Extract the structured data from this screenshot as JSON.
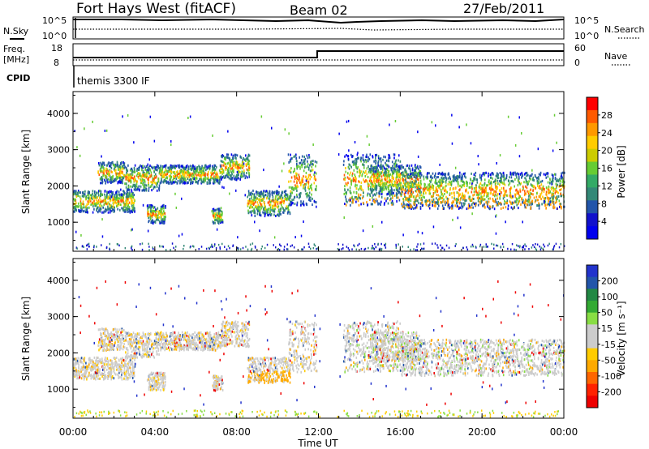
{
  "header": {
    "title": "Fort Hays West (fitACF)",
    "beam": "Beam 02",
    "date": "27/Feb/2011"
  },
  "top_panel": {
    "left_label": "N.Sky",
    "right_label": "N.Search",
    "left_ticks": [
      "10^5",
      "10^0"
    ],
    "right_ticks": [
      "10^5",
      "10^0"
    ]
  },
  "freq_panel": {
    "left_label": "Freq.",
    "left_unit": "[MHz]",
    "right_label": "Nave",
    "left_ticks": [
      "18",
      "8"
    ],
    "right_ticks": [
      "60",
      "0"
    ]
  },
  "cpid": {
    "label": "CPID",
    "value": "themis 3300 IF"
  },
  "chart_data": [
    {
      "type": "heatmap",
      "name": "power",
      "ylabel": "Slant Range [km]",
      "yticks": [
        "4000",
        "3000",
        "2000",
        "1000"
      ],
      "ylim": [
        200,
        4600
      ],
      "colorbar_label": "Power [dB]",
      "colorbar_ticks": [
        "28",
        "24",
        "20",
        "16",
        "12",
        "8",
        "4"
      ],
      "colorbar_colors": [
        "#ff0000",
        "#ff5a00",
        "#ff9900",
        "#ffcc00",
        "#cccc00",
        "#66cc33",
        "#33aa66",
        "#338877",
        "#2255aa",
        "#1111cc",
        "#0000ee"
      ]
    },
    {
      "type": "heatmap",
      "name": "velocity",
      "ylabel": "Slant Range [km]",
      "yticks": [
        "4000",
        "3000",
        "2000",
        "1000"
      ],
      "ylim": [
        200,
        4600
      ],
      "colorbar_label": "Velocity [m s⁻¹]",
      "colorbar_ticks": [
        "200",
        "100",
        "50",
        "15",
        "-15",
        "-50",
        "-100",
        "-200"
      ],
      "colorbar_colors": [
        "#2233cc",
        "#2255aa",
        "#228844",
        "#33aa33",
        "#88dd44",
        "#cccccc",
        "#cccccc",
        "#ffcc00",
        "#ffaa00",
        "#ff6600",
        "#ff2200",
        "#ee0000"
      ]
    }
  ],
  "x_axis": {
    "xlabel": "Time UT",
    "ticks": [
      "00:00",
      "04:00",
      "08:00",
      "12:00",
      "16:00",
      "20:00",
      "00:00"
    ]
  }
}
